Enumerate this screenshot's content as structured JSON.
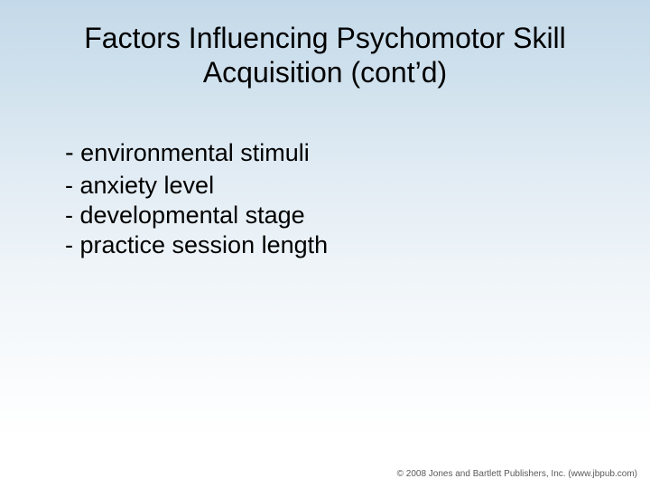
{
  "title": {
    "line1": "Factors Influencing Psychomotor Skill",
    "line2": "Acquisition (cont’d)",
    "fontsize": 32,
    "color": "#000000",
    "weight": "normal"
  },
  "content": {
    "first_dash": "-",
    "first_text": " environmental stimuli",
    "first_dash_fontsize": 29,
    "first_text_fontsize": 27,
    "items": [
      "- anxiety level",
      "- developmental stage",
      "- practice session length"
    ],
    "item_fontsize": 27,
    "color": "#000000"
  },
  "footer": {
    "text": "© 2008 Jones and Bartlett Publishers, Inc. (www.jbpub.com)",
    "fontsize": 10,
    "color": "#5a5a5a"
  },
  "background": {
    "gradient_top": "#c4d9e9",
    "gradient_bottom": "#ffffff"
  }
}
